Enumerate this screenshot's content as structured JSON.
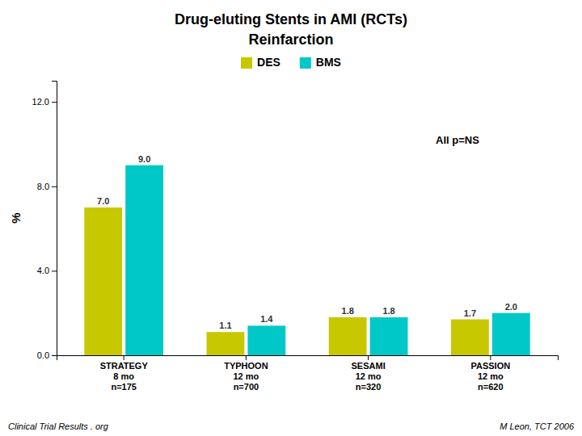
{
  "chart_data": {
    "type": "bar",
    "title": "Drug-eluting Stents in AMI (RCTs)",
    "subtitle": "Reinfarction",
    "ylabel": "%",
    "categories": [
      "STRATEGY\n8 mo\nn=175",
      "TYPHOON\n12 mo\nn=700",
      "SESAMI\n12 mo\nn=320",
      "PASSION\n12 mo\nn=620"
    ],
    "series": [
      {
        "name": "DES",
        "color": "#c8c800",
        "values": [
          7.0,
          1.1,
          1.8,
          1.7
        ],
        "value_labels": [
          "7.0",
          "1.1",
          "1.8",
          "1.7"
        ]
      },
      {
        "name": "BMS",
        "color": "#00c8c8",
        "values": [
          9.0,
          1.4,
          1.8,
          2.0
        ],
        "value_labels": [
          "9.0",
          "1.4",
          "1.8",
          "2.0"
        ]
      }
    ],
    "ylim": [
      0,
      13.0
    ],
    "yticks": [
      {
        "value": 0.0,
        "label": "0.0"
      },
      {
        "value": 4.0,
        "label": "4.0"
      },
      {
        "value": 8.0,
        "label": "8.0"
      },
      {
        "value": 12.0,
        "label": "12.0"
      }
    ],
    "grid": false,
    "legend": "top",
    "data_labels": true,
    "annotations": [
      "All p=NS",
      "Clinical Trial Results . org",
      "M Leon, TCT 2006"
    ]
  }
}
